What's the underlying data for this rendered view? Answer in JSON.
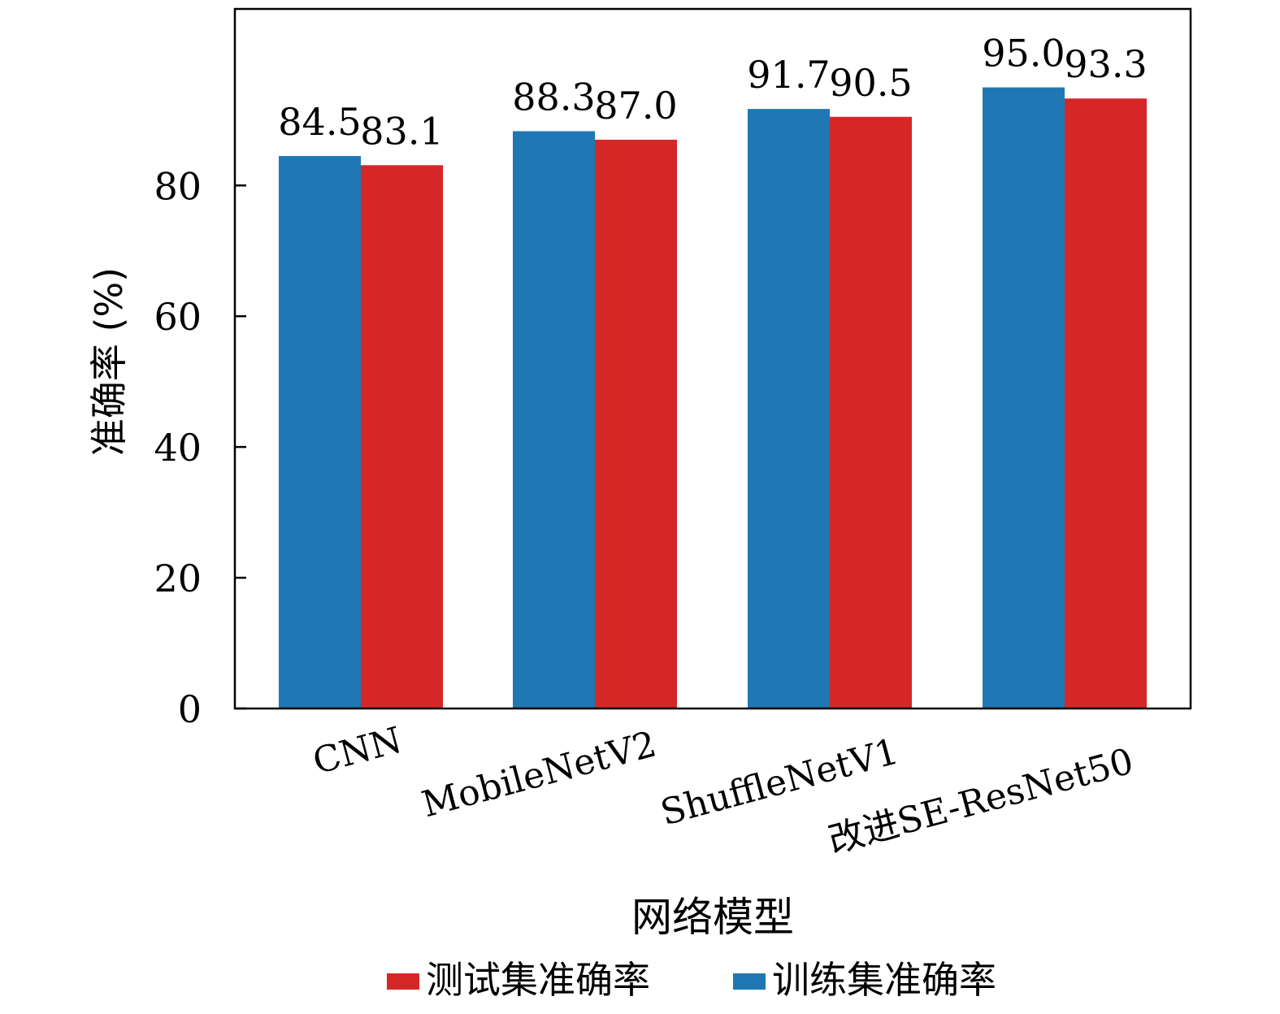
{
  "chart_data": {
    "type": "bar",
    "categories": [
      "CNN",
      "MobileNetV2",
      "ShuffleNetV1",
      "改进SE-ResNet50"
    ],
    "series": [
      {
        "name": "训练集准确率",
        "color": "#1f77b4",
        "values": [
          84.5,
          88.3,
          91.7,
          95.0
        ]
      },
      {
        "name": "测试集准确率",
        "color": "#d62728",
        "values": [
          83.1,
          87.0,
          90.5,
          93.3
        ]
      }
    ],
    "data_labels": [
      [
        "84.5",
        "88.3",
        "91.7",
        "95.0"
      ],
      [
        "83.1",
        "87.0",
        "90.5",
        "93.3"
      ]
    ],
    "xlabel": "网络模型",
    "ylabel": "准确率 (%)",
    "ylim": [
      0,
      107
    ],
    "yticks": [
      0,
      20,
      40,
      60,
      80
    ],
    "ytick_labels": [
      "0",
      "20",
      "40",
      "60",
      "80"
    ],
    "grid": false,
    "legend_placement": "bottom-center",
    "legend_order": [
      1,
      0
    ]
  }
}
